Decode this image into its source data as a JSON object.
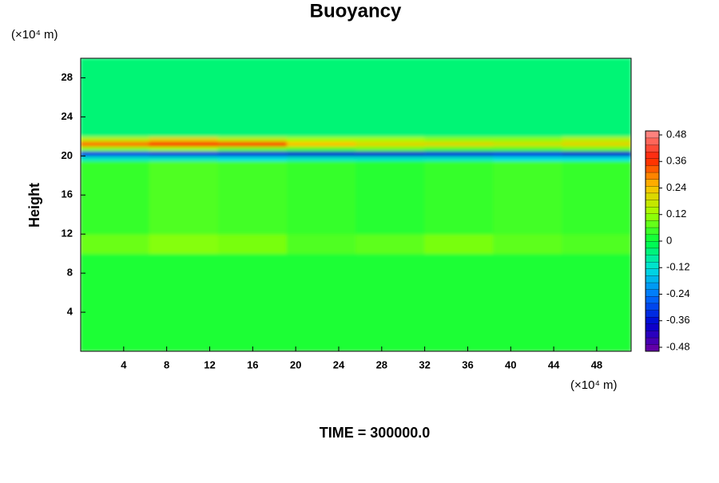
{
  "chart_data": {
    "type": "heatmap",
    "title": "Buoyancy",
    "y_label": "Height",
    "x_unit": "(×10⁴ m)",
    "y_unit": "(×10⁴ m)",
    "footer": "TIME = 300000.0",
    "xlim": [
      0,
      51.2
    ],
    "xticks": [
      4,
      8,
      12,
      16,
      20,
      24,
      28,
      32,
      36,
      40,
      44,
      48
    ],
    "ylim": [
      0,
      30
    ],
    "yticks": [
      4,
      8,
      12,
      16,
      20,
      24,
      28
    ],
    "x_edges": [
      0,
      6.4,
      12.8,
      19.2,
      25.6,
      32,
      38.4,
      44.8,
      51.2
    ],
    "y_edges": [
      0,
      10,
      12,
      19.5,
      20,
      20.5,
      21,
      21.5,
      22,
      30
    ],
    "z": [
      [
        0.02,
        0.02,
        0.02,
        0.02,
        0.02,
        0.02,
        0.02,
        0.02
      ],
      [
        0.08,
        0.1,
        0.09,
        0.06,
        0.07,
        0.09,
        0.07,
        0.06
      ],
      [
        0.04,
        0.06,
        0.05,
        0.04,
        0.03,
        0.04,
        0.05,
        0.04
      ],
      [
        -0.1,
        -0.1,
        -0.12,
        -0.1,
        -0.1,
        -0.1,
        -0.12,
        -0.12
      ],
      [
        -0.3,
        -0.32,
        -0.34,
        -0.36,
        -0.36,
        -0.34,
        -0.32,
        -0.36
      ],
      [
        0.1,
        0.12,
        0.08,
        0.06,
        0.08,
        0.06,
        0.06,
        0.08
      ],
      [
        0.3,
        0.36,
        0.34,
        0.24,
        0.2,
        0.2,
        0.18,
        0.2
      ],
      [
        0.15,
        0.2,
        0.15,
        0.12,
        0.12,
        0.1,
        0.1,
        0.14
      ],
      [
        -0.04,
        -0.04,
        -0.04,
        -0.04,
        -0.04,
        -0.04,
        -0.04,
        -0.04
      ]
    ],
    "zlim": [
      -0.48,
      0.48
    ],
    "zticks": [
      -0.48,
      -0.36,
      -0.24,
      -0.12,
      0,
      0.12,
      0.24,
      0.36,
      0.48
    ],
    "colormap": [
      "#7000a0",
      "#0000d0",
      "#0070ff",
      "#00e0e0",
      "#00ff40",
      "#a0ff00",
      "#ffc000",
      "#ff2000",
      "#ff9090"
    ]
  }
}
